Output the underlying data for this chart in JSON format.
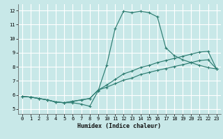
{
  "title": "",
  "xlabel": "Humidex (Indice chaleur)",
  "bg_color": "#c8e8e8",
  "grid_color": "#ffffff",
  "line_color": "#2e7d72",
  "xlim": [
    -0.5,
    23.5
  ],
  "ylim": [
    4.65,
    12.45
  ],
  "xticks": [
    0,
    1,
    2,
    3,
    4,
    5,
    6,
    7,
    8,
    9,
    10,
    11,
    12,
    13,
    14,
    15,
    16,
    17,
    18,
    19,
    20,
    21,
    22,
    23
  ],
  "yticks": [
    5,
    6,
    7,
    8,
    9,
    10,
    11,
    12
  ],
  "curve1_x": [
    0,
    1,
    2,
    3,
    4,
    5,
    6,
    7,
    8,
    9,
    10,
    11,
    12,
    13,
    14,
    15,
    16,
    17,
    18,
    19,
    20,
    21,
    22,
    23
  ],
  "curve1_y": [
    5.9,
    5.85,
    5.75,
    5.65,
    5.5,
    5.45,
    5.45,
    5.35,
    5.2,
    6.3,
    8.1,
    10.7,
    11.95,
    11.85,
    11.95,
    11.85,
    11.55,
    9.35,
    8.8,
    8.5,
    8.3,
    8.1,
    7.95,
    7.85
  ],
  "curve2_x": [
    0,
    1,
    2,
    3,
    4,
    5,
    6,
    7,
    8,
    9,
    10,
    11,
    12,
    13,
    14,
    15,
    16,
    17,
    18,
    19,
    20,
    21,
    22,
    23
  ],
  "curve2_y": [
    5.9,
    5.85,
    5.75,
    5.65,
    5.5,
    5.45,
    5.55,
    5.65,
    5.75,
    6.35,
    6.7,
    7.1,
    7.5,
    7.7,
    7.95,
    8.1,
    8.3,
    8.45,
    8.6,
    8.75,
    8.9,
    9.05,
    9.1,
    7.85
  ],
  "curve3_x": [
    0,
    1,
    2,
    3,
    4,
    5,
    6,
    7,
    8,
    9,
    10,
    11,
    12,
    13,
    14,
    15,
    16,
    17,
    18,
    19,
    20,
    21,
    22,
    23
  ],
  "curve3_y": [
    5.9,
    5.85,
    5.75,
    5.65,
    5.5,
    5.45,
    5.55,
    5.65,
    5.75,
    6.35,
    6.55,
    6.8,
    7.05,
    7.2,
    7.45,
    7.6,
    7.75,
    7.88,
    8.02,
    8.15,
    8.3,
    8.45,
    8.5,
    7.85
  ]
}
